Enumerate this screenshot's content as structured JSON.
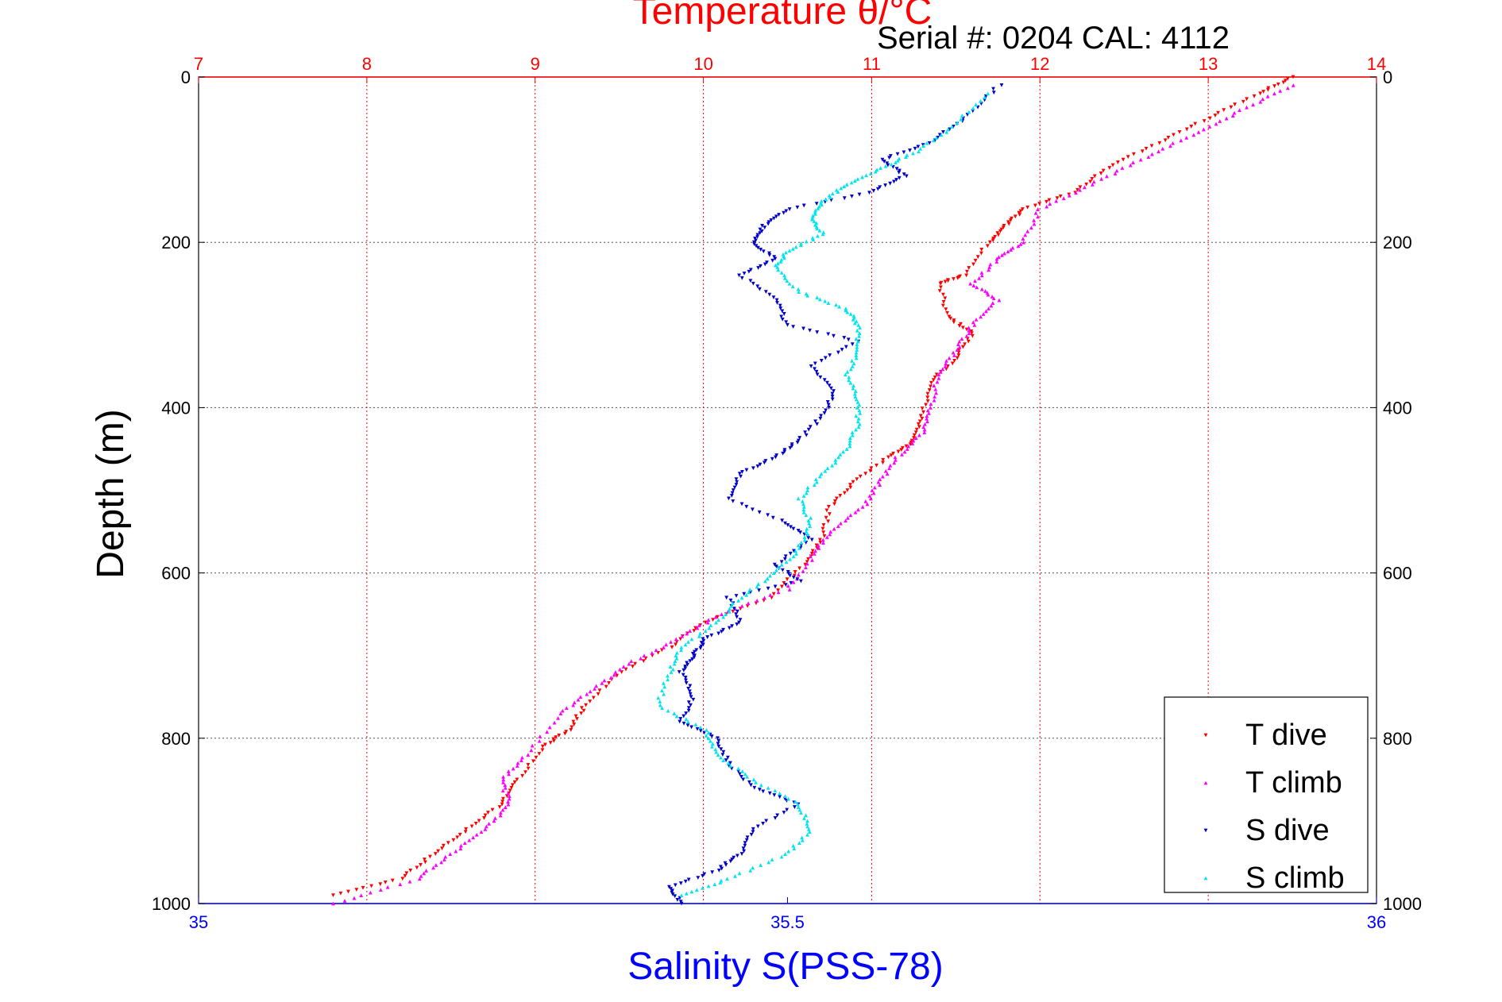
{
  "chart_data": {
    "type": "scatter",
    "title": "Temperature θ/°C",
    "subtitle": "Serial #: 0204  CAL: 4112",
    "ylabel": "Depth (m)",
    "xlabel_bottom": "Salinity S(PSS-78)",
    "xlabel_top": "Temperature θ/°C",
    "ylim": [
      0,
      1000
    ],
    "y_reversed": true,
    "xlim_bottom": [
      35,
      36
    ],
    "xlim_top": [
      7,
      14
    ],
    "y_ticks": [
      "0",
      "200",
      "400",
      "600",
      "800",
      "1000"
    ],
    "x_ticks_bottom": [
      "35",
      "35.5",
      "36"
    ],
    "x_ticks_top": [
      "7",
      "8",
      "9",
      "10",
      "11",
      "12",
      "13",
      "14"
    ],
    "grid": true,
    "legend_position": "bottom-right",
    "colors": {
      "temperature_axis": "#ff0000",
      "salinity_axis": "#0000ff",
      "t_dive": "#ff0000",
      "t_climb": "#ff00ff",
      "s_dive": "#0000cc",
      "s_climb": "#00e5ee"
    },
    "series": [
      {
        "name": "T dive",
        "axis": "top",
        "color": "#ff0000",
        "marker": "triangle-down",
        "points": [
          [
            13.5,
            0
          ],
          [
            13.3,
            20
          ],
          [
            13.0,
            50
          ],
          [
            12.7,
            80
          ],
          [
            12.4,
            110
          ],
          [
            12.2,
            140
          ],
          [
            11.9,
            160
          ],
          [
            11.8,
            180
          ],
          [
            11.7,
            200
          ],
          [
            11.55,
            240
          ],
          [
            11.4,
            250
          ],
          [
            11.45,
            290
          ],
          [
            11.6,
            310
          ],
          [
            11.5,
            340
          ],
          [
            11.35,
            370
          ],
          [
            11.3,
            410
          ],
          [
            11.25,
            440
          ],
          [
            11.1,
            460
          ],
          [
            10.9,
            490
          ],
          [
            10.75,
            520
          ],
          [
            10.7,
            560
          ],
          [
            10.6,
            590
          ],
          [
            10.4,
            630
          ],
          [
            10.0,
            660
          ],
          [
            9.8,
            690
          ],
          [
            9.5,
            720
          ],
          [
            9.3,
            760
          ],
          [
            9.2,
            790
          ],
          [
            9.05,
            810
          ],
          [
            8.9,
            850
          ],
          [
            8.8,
            880
          ],
          [
            8.6,
            910
          ],
          [
            8.4,
            940
          ],
          [
            8.2,
            970
          ],
          [
            7.8,
            990
          ]
        ]
      },
      {
        "name": "T climb",
        "axis": "top",
        "color": "#ff00ff",
        "marker": "triangle-up",
        "points": [
          [
            13.5,
            10
          ],
          [
            13.2,
            40
          ],
          [
            12.9,
            70
          ],
          [
            12.6,
            100
          ],
          [
            12.3,
            130
          ],
          [
            12.0,
            160
          ],
          [
            11.9,
            200
          ],
          [
            11.75,
            220
          ],
          [
            11.6,
            250
          ],
          [
            11.75,
            270
          ],
          [
            11.6,
            300
          ],
          [
            11.5,
            330
          ],
          [
            11.4,
            360
          ],
          [
            11.35,
            400
          ],
          [
            11.3,
            430
          ],
          [
            11.15,
            460
          ],
          [
            11.05,
            490
          ],
          [
            10.95,
            520
          ],
          [
            10.75,
            550
          ],
          [
            10.65,
            580
          ],
          [
            10.5,
            620
          ],
          [
            10.1,
            650
          ],
          [
            9.85,
            680
          ],
          [
            9.55,
            710
          ],
          [
            9.35,
            740
          ],
          [
            9.15,
            770
          ],
          [
            8.95,
            820
          ],
          [
            8.8,
            850
          ],
          [
            8.85,
            880
          ],
          [
            8.7,
            910
          ],
          [
            8.5,
            940
          ],
          [
            8.3,
            970
          ],
          [
            7.8,
            1000
          ]
        ]
      },
      {
        "name": "S dive",
        "axis": "bottom",
        "color": "#0000cc",
        "marker": "triangle-down",
        "points": [
          [
            35.68,
            10
          ],
          [
            35.65,
            50
          ],
          [
            35.62,
            80
          ],
          [
            35.58,
            100
          ],
          [
            35.6,
            120
          ],
          [
            35.57,
            140
          ],
          [
            35.5,
            160
          ],
          [
            35.48,
            180
          ],
          [
            35.47,
            200
          ],
          [
            35.49,
            220
          ],
          [
            35.46,
            240
          ],
          [
            35.49,
            270
          ],
          [
            35.5,
            300
          ],
          [
            35.56,
            320
          ],
          [
            35.52,
            350
          ],
          [
            35.54,
            380
          ],
          [
            35.53,
            410
          ],
          [
            35.51,
            440
          ],
          [
            35.49,
            460
          ],
          [
            35.46,
            480
          ],
          [
            35.45,
            510
          ],
          [
            35.5,
            540
          ],
          [
            35.52,
            560
          ],
          [
            35.49,
            590
          ],
          [
            35.51,
            610
          ],
          [
            35.45,
            630
          ],
          [
            35.46,
            660
          ],
          [
            35.43,
            680
          ],
          [
            35.42,
            700
          ],
          [
            35.41,
            720
          ],
          [
            35.42,
            750
          ],
          [
            35.41,
            780
          ],
          [
            35.44,
            800
          ],
          [
            35.45,
            830
          ],
          [
            35.47,
            860
          ],
          [
            35.51,
            880
          ],
          [
            35.47,
            910
          ],
          [
            35.46,
            940
          ],
          [
            35.44,
            960
          ],
          [
            35.4,
            980
          ],
          [
            35.41,
            1000
          ]
        ]
      },
      {
        "name": "S climb",
        "axis": "bottom",
        "color": "#00e5ee",
        "marker": "triangle-up",
        "points": [
          [
            35.67,
            20
          ],
          [
            35.64,
            60
          ],
          [
            35.61,
            90
          ],
          [
            35.58,
            110
          ],
          [
            35.55,
            130
          ],
          [
            35.53,
            150
          ],
          [
            35.52,
            170
          ],
          [
            35.53,
            190
          ],
          [
            35.5,
            210
          ],
          [
            35.49,
            230
          ],
          [
            35.51,
            260
          ],
          [
            35.55,
            280
          ],
          [
            35.56,
            300
          ],
          [
            35.56,
            330
          ],
          [
            35.55,
            360
          ],
          [
            35.56,
            390
          ],
          [
            35.56,
            420
          ],
          [
            35.55,
            450
          ],
          [
            35.53,
            480
          ],
          [
            35.51,
            510
          ],
          [
            35.52,
            540
          ],
          [
            35.51,
            570
          ],
          [
            35.49,
            600
          ],
          [
            35.46,
            630
          ],
          [
            35.44,
            660
          ],
          [
            35.41,
            690
          ],
          [
            35.4,
            720
          ],
          [
            35.39,
            760
          ],
          [
            35.43,
            790
          ],
          [
            35.44,
            820
          ],
          [
            35.47,
            850
          ],
          [
            35.51,
            880
          ],
          [
            35.52,
            910
          ],
          [
            35.5,
            940
          ],
          [
            35.45,
            970
          ],
          [
            35.41,
            990
          ]
        ]
      }
    ]
  }
}
